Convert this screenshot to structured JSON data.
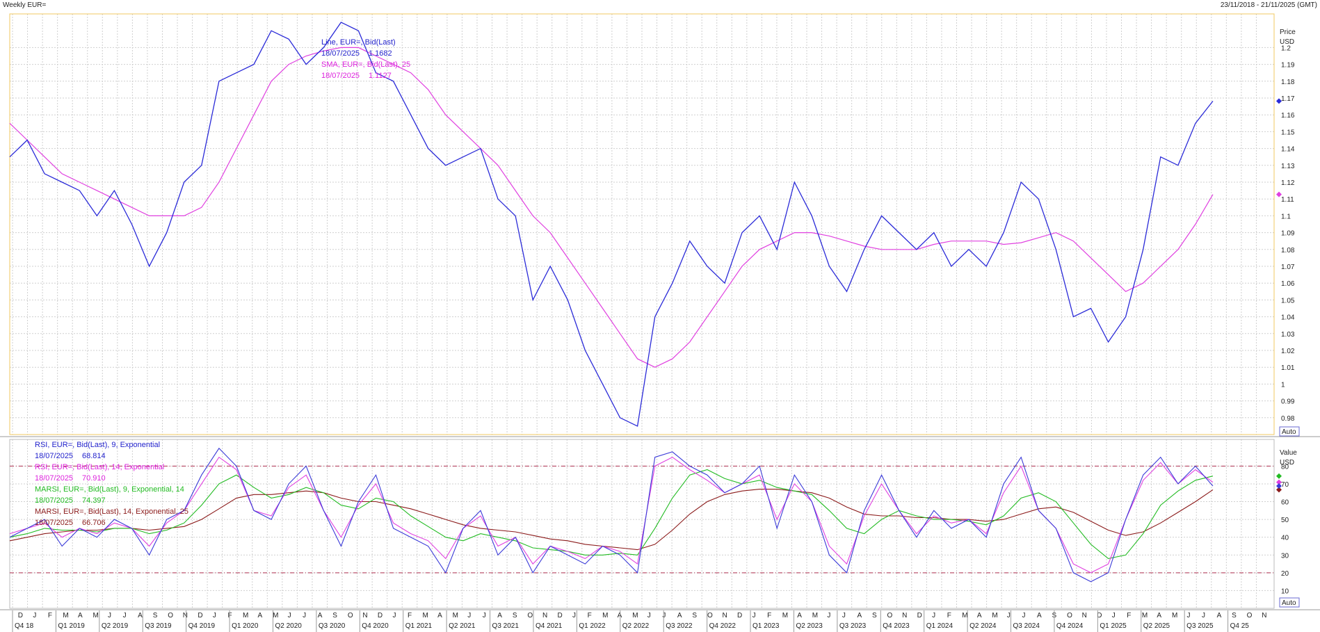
{
  "header": {
    "title": "Weekly EUR=",
    "date_range": "23/11/2018 - 21/11/2025 (GMT)"
  },
  "auto_label": "Auto",
  "colors": {
    "line": "#2a2ad8",
    "sma": "#e040e0",
    "rsi9": "#3a3ad8",
    "rsi14": "#e040e0",
    "marsi9": "#22bb22",
    "marsi14": "#8b1a1a",
    "ref": "#b03050"
  },
  "chart_data": [
    {
      "type": "line",
      "panel": "price",
      "axis_title": [
        "Price",
        "USD"
      ],
      "ylim": [
        0.97,
        1.22
      ],
      "yticks": [
        0.98,
        0.99,
        1,
        1.01,
        1.02,
        1.03,
        1.04,
        1.05,
        1.06,
        1.07,
        1.08,
        1.09,
        1.1,
        1.11,
        1.12,
        1.13,
        1.14,
        1.15,
        1.16,
        1.17,
        1.18,
        1.19,
        1.2
      ],
      "ytick_labels": [
        "0.98",
        "0.99",
        "1",
        "1.01",
        "1.02",
        "1.03",
        "1.04",
        "1.05",
        "1.06",
        "1.07",
        "1.08",
        "1.09",
        "1.1",
        "1.11",
        "1.12",
        "1.13",
        "1.14",
        "1.15",
        "1.16",
        "1.17",
        "1.18",
        "1.19",
        "1.2"
      ],
      "x": [
        "2018-11-23",
        "2019-02",
        "2019-04",
        "2019-06",
        "2019-08",
        "2019-10",
        "2019-12",
        "2020-02",
        "2020-03",
        "2020-05",
        "2020-06",
        "2020-07",
        "2020-08",
        "2020-09",
        "2020-11",
        "2020-12",
        "2021-01",
        "2021-02",
        "2021-03",
        "2021-05",
        "2021-05",
        "2021-07",
        "2021-08",
        "2021-09",
        "2021-10",
        "2021-11",
        "2021-12",
        "2022-01",
        "2022-02",
        "2022-03",
        "2022-04",
        "2022-05",
        "2022-06",
        "2022-07",
        "2022-08",
        "2022-09",
        "2022-10",
        "2022-11",
        "2022-12",
        "2023-01",
        "2023-02",
        "2023-03",
        "2023-04",
        "2023-05",
        "2023-06",
        "2023-07",
        "2023-08",
        "2023-09",
        "2023-10",
        "2023-11",
        "2023-12",
        "2024-01",
        "2024-02",
        "2024-03",
        "2024-04",
        "2024-05",
        "2024-06",
        "2024-07",
        "2024-08",
        "2024-09",
        "2024-10",
        "2024-11",
        "2024-12",
        "2025-01",
        "2025-02",
        "2025-03",
        "2025-04",
        "2025-05",
        "2025-06",
        "2025-07-18"
      ],
      "series": [
        {
          "name": "Line, EUR=, Bid(Last)",
          "last_date": "18/07/2025",
          "last_value": "1.1682",
          "values": [
            1.135,
            1.145,
            1.125,
            1.12,
            1.115,
            1.1,
            1.115,
            1.095,
            1.07,
            1.09,
            1.12,
            1.13,
            1.18,
            1.185,
            1.19,
            1.21,
            1.205,
            1.19,
            1.2,
            1.215,
            1.21,
            1.185,
            1.18,
            1.16,
            1.14,
            1.13,
            1.135,
            1.14,
            1.11,
            1.1,
            1.05,
            1.07,
            1.05,
            1.02,
            1.0,
            0.98,
            0.975,
            1.04,
            1.06,
            1.085,
            1.07,
            1.06,
            1.09,
            1.1,
            1.08,
            1.12,
            1.1,
            1.07,
            1.055,
            1.08,
            1.1,
            1.09,
            1.08,
            1.09,
            1.07,
            1.08,
            1.07,
            1.09,
            1.12,
            1.11,
            1.08,
            1.04,
            1.045,
            1.025,
            1.04,
            1.08,
            1.135,
            1.13,
            1.155,
            1.1682
          ]
        },
        {
          "name": "SMA, EUR=, Bid(Last), 25",
          "last_date": "18/07/2025",
          "last_value": "1.1127",
          "values": [
            1.155,
            1.145,
            1.135,
            1.125,
            1.12,
            1.115,
            1.11,
            1.105,
            1.1,
            1.1,
            1.1,
            1.105,
            1.12,
            1.14,
            1.16,
            1.18,
            1.19,
            1.195,
            1.198,
            1.2,
            1.2,
            1.195,
            1.19,
            1.185,
            1.175,
            1.16,
            1.15,
            1.14,
            1.13,
            1.115,
            1.1,
            1.09,
            1.075,
            1.06,
            1.045,
            1.03,
            1.015,
            1.01,
            1.015,
            1.025,
            1.04,
            1.055,
            1.07,
            1.08,
            1.085,
            1.09,
            1.09,
            1.088,
            1.085,
            1.082,
            1.08,
            1.08,
            1.08,
            1.083,
            1.085,
            1.085,
            1.085,
            1.083,
            1.084,
            1.087,
            1.09,
            1.085,
            1.075,
            1.065,
            1.055,
            1.06,
            1.07,
            1.08,
            1.095,
            1.1127
          ]
        }
      ]
    },
    {
      "type": "line",
      "panel": "indicator",
      "axis_title": [
        "Value",
        "USD"
      ],
      "ylim": [
        0,
        95
      ],
      "yticks": [
        10,
        20,
        30,
        40,
        50,
        60,
        70,
        80
      ],
      "ytick_labels": [
        "10",
        "20",
        "30",
        "40",
        "50",
        "60",
        "70",
        "80"
      ],
      "reference_lines": [
        20,
        80
      ],
      "series": [
        {
          "name": "RSI, EUR=, Bid(Last),  9, Exponential",
          "last_date": "18/07/2025",
          "last_value": "68.814",
          "values": [
            40,
            45,
            50,
            35,
            45,
            40,
            50,
            45,
            30,
            50,
            55,
            75,
            90,
            80,
            55,
            50,
            70,
            80,
            55,
            35,
            60,
            75,
            45,
            40,
            35,
            20,
            45,
            55,
            30,
            40,
            20,
            35,
            30,
            25,
            35,
            30,
            20,
            85,
            88,
            80,
            75,
            65,
            70,
            80,
            45,
            75,
            60,
            30,
            20,
            55,
            75,
            55,
            40,
            55,
            45,
            50,
            40,
            70,
            85,
            55,
            45,
            20,
            15,
            20,
            50,
            75,
            85,
            70,
            80,
            68.814
          ]
        },
        {
          "name": "RSI, EUR=, Bid(Last),  14, Exponential",
          "last_date": "18/07/2025",
          "last_value": "70.910",
          "values": [
            42,
            45,
            48,
            40,
            45,
            42,
            48,
            45,
            35,
            48,
            55,
            70,
            85,
            78,
            55,
            52,
            68,
            75,
            55,
            40,
            58,
            70,
            48,
            42,
            38,
            28,
            45,
            52,
            35,
            40,
            25,
            35,
            32,
            28,
            35,
            32,
            25,
            80,
            85,
            78,
            72,
            65,
            70,
            75,
            50,
            70,
            60,
            35,
            25,
            52,
            70,
            55,
            42,
            52,
            48,
            50,
            42,
            65,
            80,
            55,
            45,
            25,
            20,
            25,
            50,
            72,
            82,
            70,
            78,
            70.91
          ]
        },
        {
          "name": "MARSI, EUR=, Bid(Last),  9, Exponential, 14",
          "last_date": "18/07/2025",
          "last_value": "74.397",
          "values": [
            40,
            42,
            45,
            44,
            44,
            43,
            45,
            45,
            42,
            44,
            48,
            58,
            70,
            75,
            68,
            62,
            64,
            68,
            65,
            58,
            56,
            62,
            60,
            52,
            46,
            40,
            38,
            42,
            40,
            38,
            34,
            33,
            32,
            30,
            30,
            31,
            30,
            45,
            62,
            75,
            78,
            73,
            70,
            72,
            68,
            66,
            64,
            55,
            45,
            42,
            50,
            55,
            52,
            50,
            50,
            49,
            47,
            52,
            62,
            65,
            60,
            48,
            36,
            28,
            30,
            42,
            58,
            66,
            72,
            74.397
          ]
        },
        {
          "name": "MARSI, EUR=, Bid(Last),  14, Exponential, 25",
          "last_date": "18/07/2025",
          "last_value": "66.706",
          "values": [
            38,
            40,
            42,
            43,
            44,
            44,
            45,
            45,
            44,
            45,
            46,
            50,
            56,
            62,
            64,
            64,
            65,
            66,
            65,
            62,
            60,
            60,
            58,
            56,
            53,
            50,
            47,
            45,
            44,
            43,
            41,
            39,
            38,
            36,
            35,
            34,
            33,
            36,
            44,
            53,
            60,
            64,
            66,
            67,
            67,
            66,
            65,
            62,
            57,
            53,
            52,
            52,
            51,
            51,
            50,
            50,
            49,
            50,
            53,
            56,
            57,
            54,
            49,
            44,
            41,
            43,
            48,
            54,
            60,
            66.706
          ]
        }
      ]
    }
  ],
  "x_axis": {
    "months": [
      "D",
      "J",
      "F",
      "M",
      "A",
      "M",
      "J",
      "J",
      "A",
      "S",
      "O",
      "N",
      "D",
      "J",
      "F",
      "M",
      "A",
      "M",
      "J",
      "J",
      "A",
      "S",
      "O",
      "N",
      "D",
      "J",
      "F",
      "M",
      "A",
      "M",
      "J",
      "J",
      "A",
      "S",
      "O",
      "N",
      "D",
      "J",
      "F",
      "M",
      "A",
      "M",
      "J",
      "J",
      "A",
      "S",
      "O",
      "N",
      "D",
      "J",
      "F",
      "M",
      "A",
      "M",
      "J",
      "J",
      "A",
      "S",
      "O",
      "N",
      "D",
      "J",
      "F",
      "M",
      "A",
      "M",
      "J",
      "J",
      "A",
      "S",
      "O",
      "N",
      "D",
      "J",
      "F",
      "M",
      "A",
      "M",
      "J",
      "J",
      "A",
      "S",
      "O",
      "N"
    ],
    "quarters": [
      "Q4 18",
      "Q1 2019",
      "Q2 2019",
      "Q3 2019",
      "Q4 2019",
      "Q1 2020",
      "Q2 2020",
      "Q3 2020",
      "Q4 2020",
      "Q1 2021",
      "Q2 2021",
      "Q3 2021",
      "Q4 2021",
      "Q1 2022",
      "Q2 2022",
      "Q3 2022",
      "Q4 2022",
      "Q1 2023",
      "Q2 2023",
      "Q3 2023",
      "Q4 2023",
      "Q1 2024",
      "Q2 2024",
      "Q3 2024",
      "Q4 2024",
      "Q1 2025",
      "Q2 2025",
      "Q3 2025",
      "Q4 25"
    ]
  }
}
